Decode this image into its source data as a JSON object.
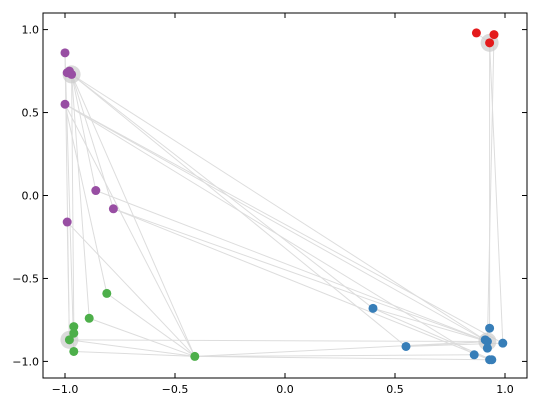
{
  "chart_data": {
    "type": "scatter",
    "title": "",
    "xlabel": "",
    "ylabel": "",
    "xlim": [
      -1.1,
      1.1
    ],
    "ylim": [
      -1.1,
      1.1
    ],
    "x_ticks": [
      -1.0,
      -0.5,
      0.0,
      0.5,
      1.0
    ],
    "x_tick_labels": [
      "−1.0",
      "−0.5",
      "0.0",
      "0.5",
      "1.0"
    ],
    "y_ticks": [
      1.0,
      0.5,
      0.0,
      -0.5,
      -1.0
    ],
    "y_tick_labels": [
      "1.0",
      "0.5",
      "0.0",
      "−0.5",
      "−1.0"
    ],
    "grid": false,
    "colors": {
      "red": "#e41a1c",
      "blue": "#377eb8",
      "green": "#4daf4a",
      "purple": "#984ea3",
      "edge": "#dddddd",
      "hub": "#cccccc"
    },
    "hubs": [
      {
        "x": 0.93,
        "y": 0.92
      },
      {
        "x": -0.97,
        "y": 0.73
      },
      {
        "x": -0.98,
        "y": -0.87
      },
      {
        "x": 0.92,
        "y": -0.88
      }
    ],
    "series": [
      {
        "color": "red",
        "points": [
          {
            "x": 0.87,
            "y": 0.98
          },
          {
            "x": 0.95,
            "y": 0.97
          },
          {
            "x": 0.93,
            "y": 0.92
          }
        ]
      },
      {
        "color": "purple",
        "points": [
          {
            "x": -1.0,
            "y": 0.86
          },
          {
            "x": -0.99,
            "y": 0.74
          },
          {
            "x": -0.98,
            "y": 0.75
          },
          {
            "x": -0.97,
            "y": 0.73
          },
          {
            "x": -1.0,
            "y": 0.55
          },
          {
            "x": -0.86,
            "y": 0.03
          },
          {
            "x": -0.78,
            "y": -0.08
          },
          {
            "x": -0.99,
            "y": -0.16
          }
        ]
      },
      {
        "color": "green",
        "points": [
          {
            "x": -0.81,
            "y": -0.59
          },
          {
            "x": -0.89,
            "y": -0.74
          },
          {
            "x": -0.96,
            "y": -0.79
          },
          {
            "x": -0.96,
            "y": -0.83
          },
          {
            "x": -0.98,
            "y": -0.87
          },
          {
            "x": -0.96,
            "y": -0.94
          },
          {
            "x": -0.41,
            "y": -0.97
          }
        ]
      },
      {
        "color": "blue",
        "points": [
          {
            "x": 0.4,
            "y": -0.68
          },
          {
            "x": 0.93,
            "y": -0.8
          },
          {
            "x": 0.91,
            "y": -0.87
          },
          {
            "x": 0.92,
            "y": -0.88
          },
          {
            "x": 0.99,
            "y": -0.89
          },
          {
            "x": 0.92,
            "y": -0.92
          },
          {
            "x": 0.55,
            "y": -0.91
          },
          {
            "x": 0.86,
            "y": -0.96
          },
          {
            "x": 0.93,
            "y": -0.99
          },
          {
            "x": 0.94,
            "y": -0.99
          }
        ]
      }
    ],
    "edges": [
      [
        [
          -0.97,
          0.73
        ],
        [
          0.55,
          -0.91
        ]
      ],
      [
        [
          -0.97,
          0.73
        ],
        [
          0.4,
          -0.68
        ]
      ],
      [
        [
          -0.97,
          0.73
        ],
        [
          0.92,
          -0.88
        ]
      ],
      [
        [
          -0.97,
          0.73
        ],
        [
          -0.41,
          -0.97
        ]
      ],
      [
        [
          -0.97,
          0.73
        ],
        [
          -0.89,
          -0.74
        ]
      ],
      [
        [
          -0.97,
          0.73
        ],
        [
          -0.96,
          -0.79
        ]
      ],
      [
        [
          -0.97,
          0.73
        ],
        [
          -0.86,
          0.03
        ]
      ],
      [
        [
          -0.97,
          0.73
        ],
        [
          -0.78,
          -0.08
        ]
      ],
      [
        [
          -1.0,
          0.86
        ],
        [
          -0.98,
          -0.87
        ]
      ],
      [
        [
          -1.0,
          0.86
        ],
        [
          -0.96,
          -0.94
        ]
      ],
      [
        [
          -1.0,
          0.55
        ],
        [
          0.92,
          -0.88
        ]
      ],
      [
        [
          -1.0,
          0.55
        ],
        [
          0.86,
          -0.96
        ]
      ],
      [
        [
          -1.0,
          0.55
        ],
        [
          0.99,
          -0.89
        ]
      ],
      [
        [
          -1.0,
          0.55
        ],
        [
          -0.41,
          -0.97
        ]
      ],
      [
        [
          -1.0,
          0.55
        ],
        [
          -0.81,
          -0.59
        ]
      ],
      [
        [
          -0.86,
          0.03
        ],
        [
          0.92,
          -0.88
        ]
      ],
      [
        [
          -0.78,
          -0.08
        ],
        [
          0.92,
          -0.88
        ]
      ],
      [
        [
          -0.78,
          -0.08
        ],
        [
          0.93,
          -0.99
        ]
      ],
      [
        [
          -0.99,
          -0.16
        ],
        [
          -0.98,
          -0.87
        ]
      ],
      [
        [
          -0.99,
          -0.16
        ],
        [
          -0.41,
          -0.97
        ]
      ],
      [
        [
          -0.81,
          -0.59
        ],
        [
          -0.41,
          -0.97
        ]
      ],
      [
        [
          -0.89,
          -0.74
        ],
        [
          -0.41,
          -0.97
        ]
      ],
      [
        [
          -0.98,
          -0.87
        ],
        [
          -0.41,
          -0.97
        ]
      ],
      [
        [
          -0.96,
          -0.94
        ],
        [
          -0.41,
          -0.97
        ]
      ],
      [
        [
          -0.98,
          -0.87
        ],
        [
          0.92,
          -0.88
        ]
      ],
      [
        [
          -0.41,
          -0.97
        ],
        [
          0.92,
          -0.88
        ]
      ],
      [
        [
          -0.41,
          -0.97
        ],
        [
          0.93,
          -0.99
        ]
      ],
      [
        [
          -0.41,
          -0.97
        ],
        [
          0.86,
          -0.96
        ]
      ],
      [
        [
          0.55,
          -0.91
        ],
        [
          0.92,
          -0.88
        ]
      ],
      [
        [
          0.55,
          -0.91
        ],
        [
          0.99,
          -0.89
        ]
      ],
      [
        [
          0.4,
          -0.68
        ],
        [
          0.92,
          -0.88
        ]
      ],
      [
        [
          0.4,
          -0.68
        ],
        [
          0.94,
          -0.99
        ]
      ],
      [
        [
          0.93,
          0.92
        ],
        [
          0.93,
          -0.8
        ]
      ],
      [
        [
          0.93,
          0.92
        ],
        [
          0.99,
          -0.89
        ]
      ],
      [
        [
          0.95,
          0.97
        ],
        [
          0.92,
          -0.88
        ]
      ],
      [
        [
          0.87,
          0.98
        ],
        [
          0.93,
          0.92
        ]
      ]
    ]
  }
}
